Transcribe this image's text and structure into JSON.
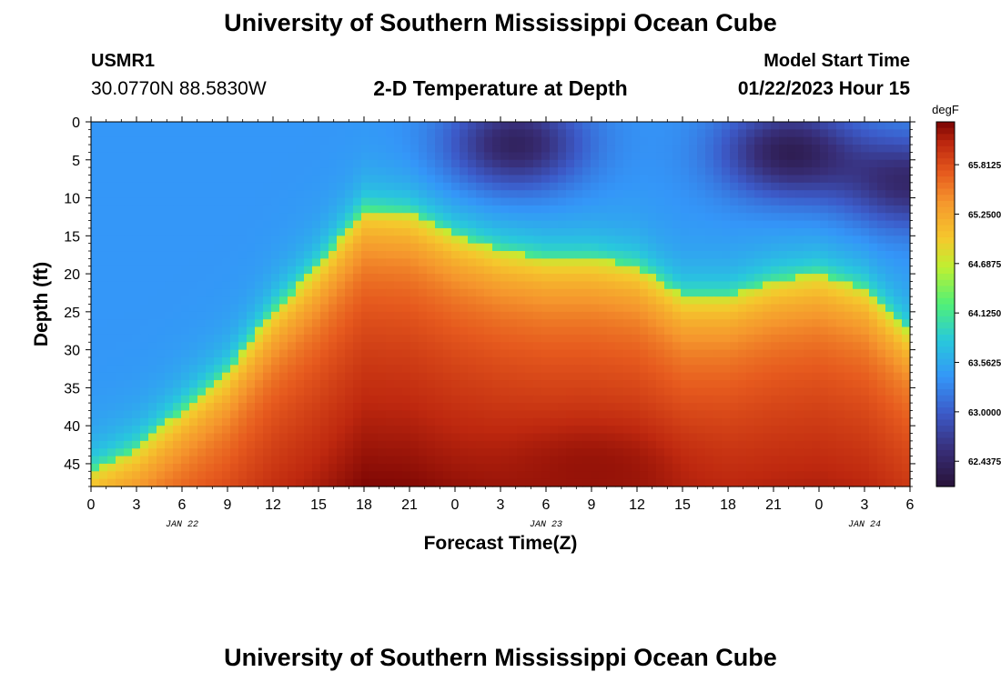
{
  "header": {
    "title": "University of Southern Mississippi Ocean Cube",
    "station": "USMR1",
    "coords": "30.0770N  88.5830W",
    "subtitle": "2-D Temperature at Depth",
    "model_start_label": "Model Start Time",
    "model_start_value": "01/22/2023 Hour 15"
  },
  "footer": {
    "title": "University of Southern Mississippi Ocean Cube"
  },
  "chart_data": {
    "type": "heatmap",
    "title": "2-D Temperature at Depth",
    "xlabel": "Forecast Time(Z)",
    "ylabel": "Depth (ft)",
    "x_ticks": [
      "0",
      "3",
      "6",
      "9",
      "12",
      "15",
      "18",
      "21",
      "0",
      "3",
      "6",
      "9",
      "12",
      "15",
      "18",
      "21",
      "0",
      "3",
      "6"
    ],
    "date_labels": [
      {
        "label": "JAN 22",
        "hour": 6
      },
      {
        "label": "JAN 23",
        "hour": 30
      },
      {
        "label": "JAN 24",
        "hour": 51
      }
    ],
    "x_range_hours": [
      0,
      54
    ],
    "y_ticks": [
      0,
      5,
      10,
      15,
      20,
      25,
      30,
      35,
      40,
      45
    ],
    "ylim": [
      0,
      48
    ],
    "colorbar": {
      "units": "degF",
      "ticks": [
        "65.8125",
        "65.2500",
        "64.6875",
        "64.1250",
        "63.5625",
        "63.0000",
        "62.4375"
      ],
      "range": [
        62.15,
        66.3
      ]
    },
    "front_boundary_hours": [
      0,
      3,
      6,
      9,
      12,
      15,
      18,
      21,
      24,
      27,
      30,
      33,
      36,
      39,
      42,
      45,
      48,
      51,
      54
    ],
    "front_boundary_depth_ft": [
      46,
      43,
      38,
      33,
      25,
      19,
      11.5,
      12,
      15,
      17,
      18,
      18,
      19,
      23,
      23,
      21,
      20,
      22,
      28
    ],
    "cold_pockets": [
      {
        "hour": 28,
        "depth_ft": 3,
        "temp_degF": 62.4
      },
      {
        "hour": 46,
        "depth_ft": 4,
        "temp_degF": 62.35
      },
      {
        "hour": 54,
        "depth_ft": 8,
        "temp_degF": 62.5
      }
    ],
    "warm_cores": [
      {
        "hour": 33,
        "depth_ft": 46,
        "temp_degF": 66.2
      },
      {
        "hour": 48,
        "depth_ft": 41,
        "temp_degF": 65.6
      },
      {
        "hour": 22,
        "depth_ft": 44,
        "temp_degF": 65.8
      }
    ]
  }
}
